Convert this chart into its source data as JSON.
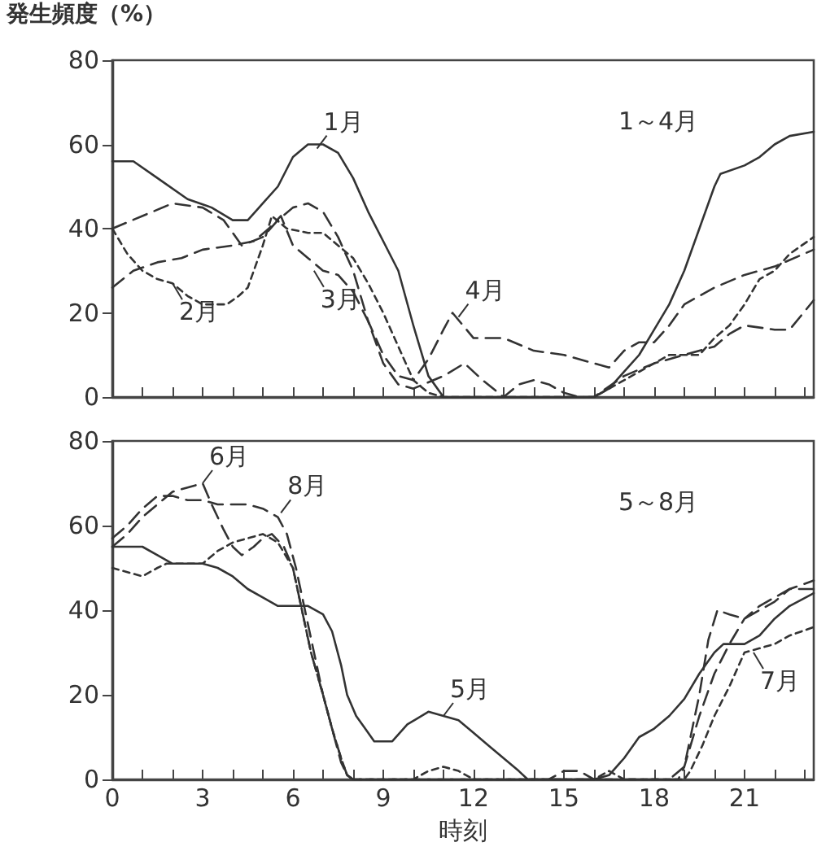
{
  "chart_data": [
    {
      "type": "line",
      "ylabel": "発生頻度（%）",
      "xlim": [
        0,
        23.3
      ],
      "ylim": [
        0,
        80
      ],
      "yticks": [
        0,
        20,
        40,
        60,
        80
      ],
      "xticks": [
        {
          "value": 0,
          "label": null
        },
        {
          "value": 1,
          "label": null
        },
        {
          "value": 2,
          "label": null
        },
        {
          "value": 3,
          "label": null
        },
        {
          "value": 4,
          "label": null
        },
        {
          "value": 5,
          "label": null
        },
        {
          "value": 6,
          "label": null
        },
        {
          "value": 7,
          "label": null
        },
        {
          "value": 8,
          "label": null
        },
        {
          "value": 9,
          "label": null
        },
        {
          "value": 10,
          "label": null
        },
        {
          "value": 11,
          "label": null
        },
        {
          "value": 12,
          "label": null
        },
        {
          "value": 13,
          "label": null
        },
        {
          "value": 14,
          "label": null
        },
        {
          "value": 15,
          "label": null
        },
        {
          "value": 16,
          "label": null
        },
        {
          "value": 17,
          "label": null
        },
        {
          "value": 18,
          "label": null
        },
        {
          "value": 19,
          "label": null
        },
        {
          "value": 20,
          "label": null
        },
        {
          "value": 21,
          "label": null
        },
        {
          "value": 22,
          "label": null
        },
        {
          "value": 23,
          "label": null
        }
      ],
      "tick_labels": "y",
      "grid": false,
      "marker": "none",
      "annotations": [
        "1～4月",
        {
          "text": "1月",
          "x": 6.8,
          "y": 59
        },
        {
          "text": "2月",
          "x": 2,
          "y": 27
        },
        {
          "text": "3月",
          "x": 6.7,
          "y": 30
        },
        {
          "text": "4月",
          "x": 11.5,
          "y": 19
        }
      ],
      "series": [
        {
          "color": "#333333",
          "line_style": "solid",
          "x": [
            0,
            0.7,
            1.5,
            2.5,
            3.3,
            4,
            4.5,
            5,
            5.5,
            6,
            6.5,
            7,
            7.5,
            8,
            8.5,
            9,
            9.5,
            10,
            10.5,
            11,
            12,
            13,
            14,
            15,
            16,
            16.5,
            17,
            17.5,
            18,
            18.5,
            19,
            19.5,
            20,
            20.2,
            21,
            21.5,
            22,
            22.5,
            23.3
          ],
          "values": [
            56,
            56,
            52,
            47,
            45,
            42,
            42,
            46,
            50,
            57,
            60,
            60,
            58,
            52,
            44,
            37,
            30,
            17,
            5,
            0,
            0,
            0,
            0,
            0,
            0,
            2,
            6,
            10,
            16,
            22,
            30,
            40,
            50,
            53,
            55,
            57,
            60,
            62,
            63
          ]
        },
        {
          "color": "#333333",
          "line_style": "dotted",
          "x": [
            0,
            0.5,
            1,
            1.5,
            2,
            2.5,
            3,
            3.5,
            3.8,
            4.2,
            4.5,
            5,
            5.3,
            5.8,
            6.5,
            7,
            7.5,
            8,
            8.5,
            9,
            9.5,
            10,
            10.5,
            11,
            12,
            13,
            14,
            15,
            16,
            17,
            18,
            18.5,
            19,
            19.5,
            20,
            20.5,
            21,
            21.5,
            22,
            22.5,
            23.3
          ],
          "values": [
            40,
            34,
            30,
            28,
            27,
            24,
            22,
            22,
            22,
            24,
            26,
            36,
            43,
            40,
            39,
            39,
            36,
            33,
            27,
            20,
            12,
            4,
            1,
            0,
            0,
            0,
            0,
            0,
            0,
            4,
            8,
            10,
            10,
            10,
            14,
            17,
            22,
            28,
            30,
            34,
            38
          ]
        },
        {
          "color": "#333333",
          "line_style": "dashed",
          "x": [
            0,
            0.7,
            1.5,
            2.3,
            3,
            4,
            4.7,
            5.2,
            5.6,
            6,
            6.5,
            7,
            7.5,
            8,
            8.5,
            9,
            9.5,
            10,
            11,
            11.7,
            12.3,
            13,
            13.5,
            14,
            14.5,
            15,
            15.5,
            16,
            17,
            18,
            19,
            20,
            20.5,
            21,
            22,
            22.5,
            23.3
          ],
          "values": [
            26,
            30,
            32,
            33,
            35,
            36,
            37,
            40,
            43,
            36,
            33,
            30,
            29,
            25,
            18,
            8,
            3,
            2,
            5,
            8,
            4,
            0,
            3,
            4,
            3,
            1,
            0,
            0,
            5,
            8,
            10,
            12,
            15,
            17,
            16,
            16,
            23
          ]
        },
        {
          "color": "#333333",
          "line_style": "dashed",
          "x": [
            0,
            1,
            2,
            3,
            3.7,
            4.3,
            5,
            5.5,
            6,
            6.5,
            7,
            7.5,
            8,
            8.5,
            9,
            9.5,
            10,
            10.5,
            11,
            11.3,
            12,
            13,
            14,
            15,
            16,
            16.5,
            17,
            17.5,
            18,
            18.5,
            19,
            20,
            21,
            22,
            23.3
          ],
          "values": [
            40,
            43,
            46,
            45,
            42,
            36,
            38,
            42,
            45,
            46,
            44,
            38,
            30,
            18,
            10,
            5,
            4,
            9,
            16,
            20,
            14,
            14,
            11,
            10,
            8,
            7,
            11,
            13,
            13,
            17,
            22,
            26,
            29,
            31,
            35
          ]
        }
      ]
    },
    {
      "type": "line",
      "xlabel": "時刻",
      "xlim": [
        0,
        23.3
      ],
      "ylim": [
        0,
        80
      ],
      "yticks": [
        0,
        20,
        40,
        60,
        80
      ],
      "xticks": [
        0,
        {
          "value": 1,
          "label": null
        },
        {
          "value": 2,
          "label": null
        },
        3,
        {
          "value": 4,
          "label": null
        },
        {
          "value": 5,
          "label": null
        },
        6,
        {
          "value": 7,
          "label": null
        },
        {
          "value": 8,
          "label": null
        },
        9,
        {
          "value": 10,
          "label": null
        },
        {
          "value": 11,
          "label": null
        },
        12,
        {
          "value": 13,
          "label": null
        },
        {
          "value": 14,
          "label": null
        },
        15,
        {
          "value": 16,
          "label": null
        },
        {
          "value": 17,
          "label": null
        },
        18,
        {
          "value": 19,
          "label": null
        },
        {
          "value": 20,
          "label": null
        },
        21,
        {
          "value": 22,
          "label": null
        },
        {
          "value": 23,
          "label": null
        }
      ],
      "grid": false,
      "marker": "none",
      "annotations": [
        "5～8月",
        {
          "text": "6月",
          "x": 3,
          "y": 70
        },
        {
          "text": "8月",
          "x": 5.6,
          "y": 63
        },
        {
          "text": "5月",
          "x": 11,
          "y": 15
        },
        {
          "text": "7月",
          "x": 21.3,
          "y": 30
        }
      ],
      "series": [
        {
          "color": "#333333",
          "line_style": "solid",
          "x": [
            0,
            1,
            1.5,
            2,
            3,
            3.5,
            4,
            4.5,
            5,
            5.5,
            6,
            6.5,
            7,
            7.3,
            7.6,
            7.8,
            8.1,
            8.4,
            8.7,
            9.3,
            9.8,
            10.5,
            11,
            11.5,
            12,
            12.5,
            13,
            13.5,
            13.8,
            14.5,
            15,
            15.5,
            16,
            16.5,
            17,
            17.5,
            18,
            18.5,
            19,
            19.5,
            20,
            20.3,
            21,
            21.5,
            22,
            22.5,
            23.3
          ],
          "values": [
            55,
            55,
            53,
            51,
            51,
            50,
            48,
            45,
            43,
            41,
            41,
            41,
            39,
            35,
            27,
            20,
            15,
            12,
            9,
            9,
            13,
            16,
            15,
            14,
            11,
            8,
            5,
            2,
            0,
            0,
            0,
            0,
            0,
            1,
            5,
            10,
            12,
            15,
            19,
            25,
            30,
            32,
            32,
            34,
            38,
            41,
            44
          ]
        },
        {
          "color": "#333333",
          "line_style": "dashed",
          "x": [
            0,
            0.5,
            1,
            1.5,
            2,
            2.5,
            3,
            3.3,
            3.7,
            4,
            4.3,
            4.7,
            5,
            5.3,
            5.7,
            6,
            6.3,
            6.6,
            7,
            7.3,
            7.6,
            7.8,
            8,
            14.5,
            15,
            15.5,
            16,
            16.5,
            18.5,
            19,
            19.5,
            19.8,
            20.1,
            20.5,
            21,
            21.5,
            22,
            22.5,
            23.3
          ],
          "values": [
            55,
            58,
            62,
            65,
            68,
            69,
            70,
            65,
            59,
            55,
            53,
            55,
            57,
            58,
            55,
            50,
            40,
            30,
            20,
            12,
            5,
            1,
            0,
            0,
            2,
            2,
            0,
            0,
            0,
            3,
            20,
            33,
            40,
            39,
            38,
            40,
            42,
            45,
            47
          ]
        },
        {
          "color": "#333333",
          "line_style": "dotted",
          "x": [
            0,
            0.5,
            1,
            1.5,
            1.8,
            2.5,
            3,
            3.5,
            4,
            4.5,
            5,
            5.5,
            6,
            6.3,
            6.6,
            7,
            7.3,
            7.6,
            7.8,
            8,
            10,
            10.5,
            11,
            11.5,
            12,
            16,
            16.5,
            17,
            19,
            19.2,
            19.6,
            20,
            20.5,
            21,
            21.5,
            22,
            22.5,
            23.3
          ],
          "values": [
            50,
            49,
            48,
            50,
            51,
            51,
            51,
            54,
            56,
            57,
            58,
            56,
            50,
            40,
            30,
            20,
            12,
            5,
            1,
            0,
            0,
            2,
            3,
            2,
            0,
            0,
            2,
            0,
            0,
            2,
            8,
            15,
            22,
            30,
            31,
            32,
            34,
            36
          ]
        },
        {
          "color": "#333333",
          "line_style": "dashed",
          "x": [
            0,
            0.5,
            1,
            1.5,
            2,
            2.5,
            3,
            3.5,
            4,
            4.5,
            5,
            5.5,
            5.8,
            6.1,
            6.4,
            6.7,
            7,
            7.3,
            7.6,
            7.8,
            8,
            18.8,
            19,
            19.5,
            20,
            20.5,
            21,
            21.5,
            22,
            22.5,
            23.3
          ],
          "values": [
            57,
            60,
            64,
            67,
            67,
            66,
            66,
            65,
            65,
            65,
            64,
            62,
            58,
            50,
            40,
            30,
            20,
            12,
            4,
            1,
            0,
            0,
            3,
            15,
            25,
            32,
            38,
            41,
            43,
            45,
            45
          ]
        }
      ]
    }
  ]
}
